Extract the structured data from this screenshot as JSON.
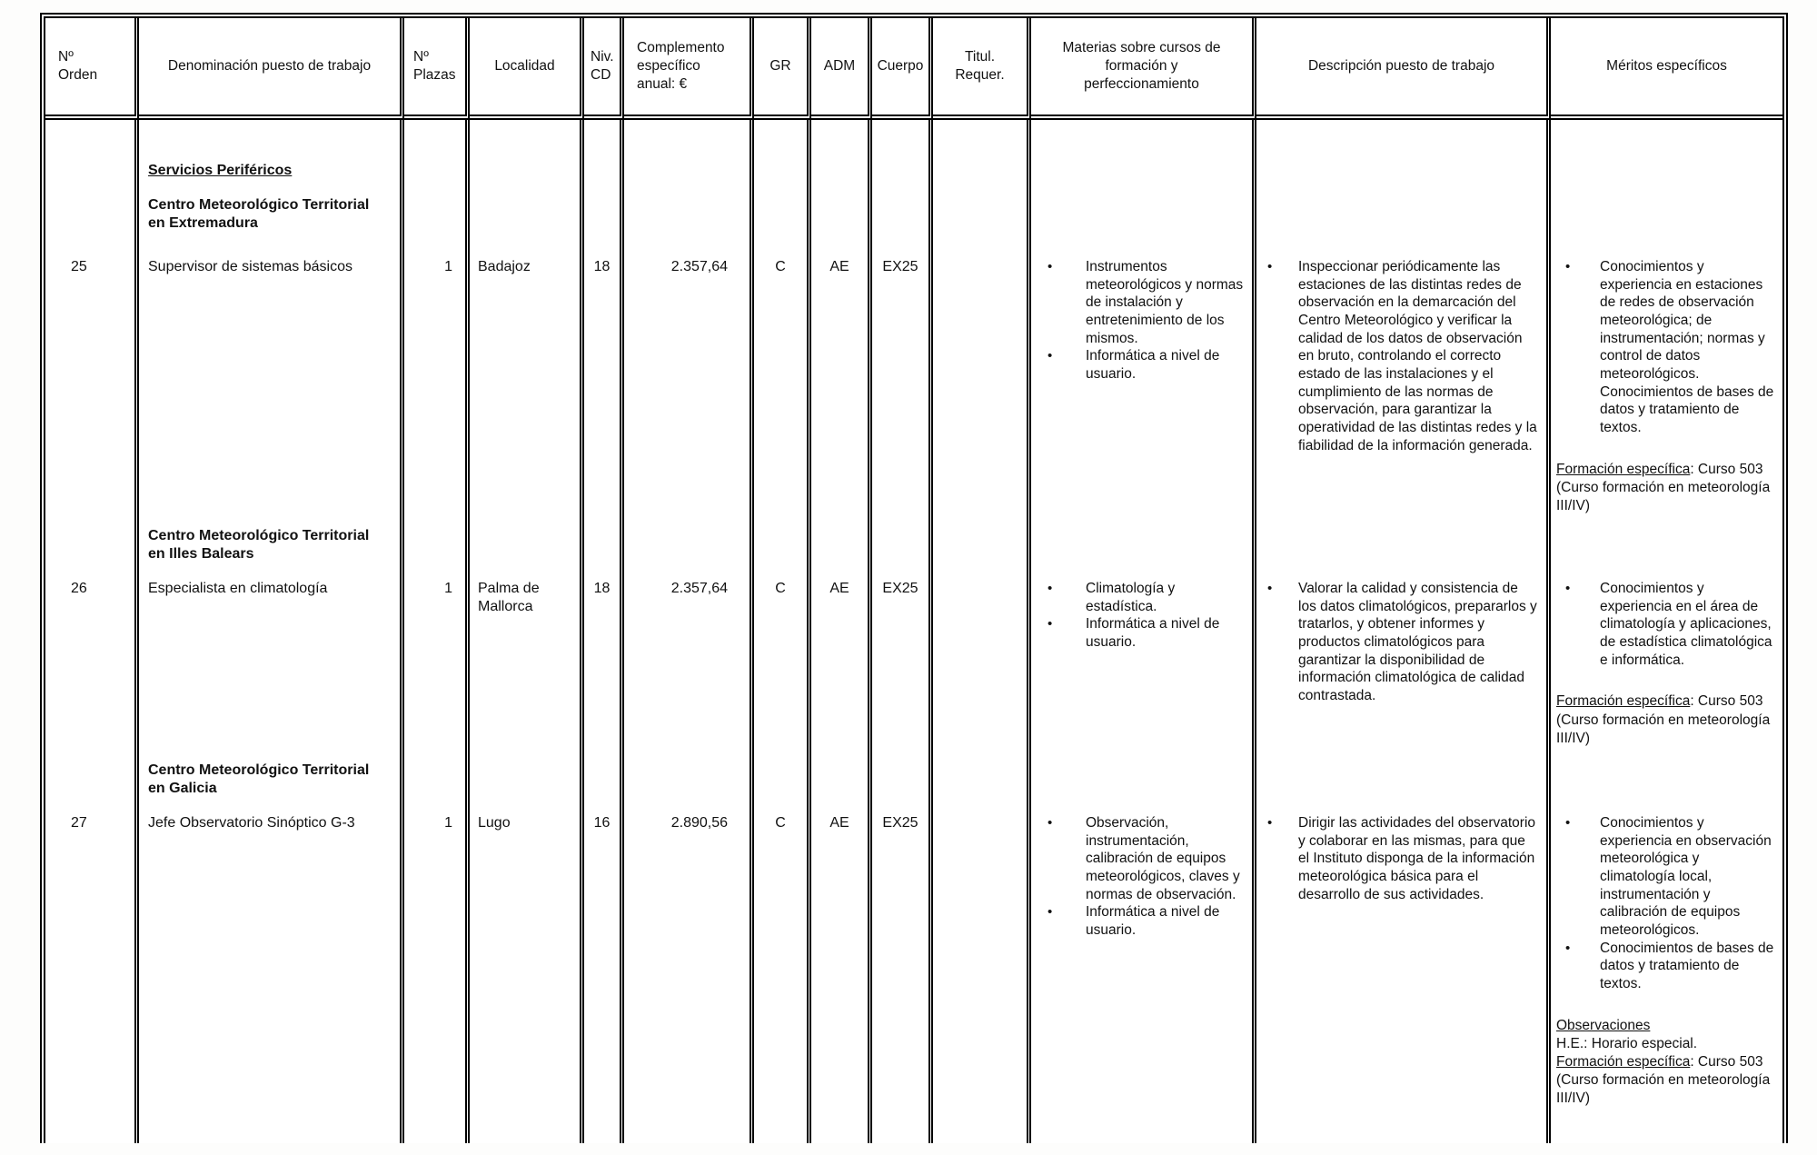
{
  "table": {
    "headers": [
      "Nº\nOrden",
      "Denominación puesto de trabajo",
      "Nº\nPlazas",
      "Localidad",
      "Niv.\nCD",
      "Complemento\nespecífico\nanual: €",
      "GR",
      "ADM",
      "Cuerpo",
      "Titul.\nRequer.",
      "Materias sobre cursos de formación y perfeccionamiento",
      "Descripción puesto de trabajo",
      "Méritos específicos"
    ],
    "rows": [
      {
        "type": "section",
        "servicios": "Servicios Periféricos",
        "heading": "Centro Meteorológico Territorial en Extremadura"
      },
      {
        "type": "job",
        "orden": "25",
        "denominacion": "Supervisor de sistemas básicos",
        "plazas": "1",
        "localidad": "Badajoz",
        "niv_cd": "18",
        "complemento": "2.357,64",
        "gr": "C",
        "adm": "AE",
        "cuerpo": "EX25",
        "titul_requer": "",
        "materias": [
          "Instrumentos meteorológicos y normas de instalación y entretenimiento de los mismos.",
          "Informática a nivel de usuario."
        ],
        "descripcion": [
          "Inspeccionar periódicamente las estaciones de las distintas redes de observación en la demarcación del Centro Meteorológico y verificar la calidad de los datos de observación en bruto, controlando el correcto estado de las instalaciones y el cumplimiento de las normas de observación, para garantizar la operatividad de las distintas redes y la fiabilidad de la información generada."
        ],
        "meritos": [
          "Conocimientos y experiencia en estaciones de redes de observación meteorológica; de instrumentación; normas y control de datos meteorológicos. Conocimientos de bases de datos y tratamiento de textos."
        ],
        "notes": {
          "formacion_label": "Formación específica",
          "formacion_text": ": Curso 503 (Curso formación en meteorología III/IV)"
        }
      },
      {
        "type": "section",
        "heading": "Centro Meteorológico Territorial en Illes Balears"
      },
      {
        "type": "job",
        "orden": "26",
        "denominacion": "Especialista en climatología",
        "plazas": "1",
        "localidad": "Palma de Mallorca",
        "niv_cd": "18",
        "complemento": "2.357,64",
        "gr": "C",
        "adm": "AE",
        "cuerpo": "EX25",
        "titul_requer": "",
        "materias": [
          "Climatología y estadística.",
          "Informática a nivel de usuario."
        ],
        "descripcion": [
          "Valorar la calidad y consistencia de los datos climatológicos, prepararlos y tratarlos, y obtener informes y productos climatológicos para garantizar la disponibilidad de información climatológica de calidad contrastada."
        ],
        "meritos": [
          "Conocimientos y experiencia en el área de climatología y aplicaciones, de estadística climatológica e informática."
        ],
        "notes": {
          "formacion_label": "Formación específica",
          "formacion_text": ": Curso 503 (Curso formación en meteorología III/IV)"
        }
      },
      {
        "type": "section",
        "heading": "Centro Meteorológico Territorial en Galicia"
      },
      {
        "type": "job",
        "orden": "27",
        "denominacion": "Jefe Observatorio Sinóptico G-3",
        "plazas": "1",
        "localidad": "Lugo",
        "niv_cd": "16",
        "complemento": "2.890,56",
        "gr": "C",
        "adm": "AE",
        "cuerpo": "EX25",
        "titul_requer": "",
        "materias": [
          "Observación, instrumentación, calibración de equipos meteorológicos, claves y normas de observación.",
          "Informática a nivel de usuario."
        ],
        "descripcion": [
          "Dirigir las actividades del observatorio y colaborar en las mismas, para que el Instituto disponga de la información meteorológica básica para el desarrollo de sus actividades."
        ],
        "meritos": [
          "Conocimientos y experiencia en observación meteorológica y climatología local, instrumentación y calibración de equipos meteorológicos.",
          "Conocimientos de bases de datos y tratamiento de textos."
        ],
        "notes": {
          "observaciones_title": "Observaciones",
          "he_line": "H.E.: Horario especial.",
          "formacion_label": "Formación específica",
          "formacion_text": ": Curso 503 (Curso formación en meteorología III/IV)"
        }
      }
    ]
  }
}
